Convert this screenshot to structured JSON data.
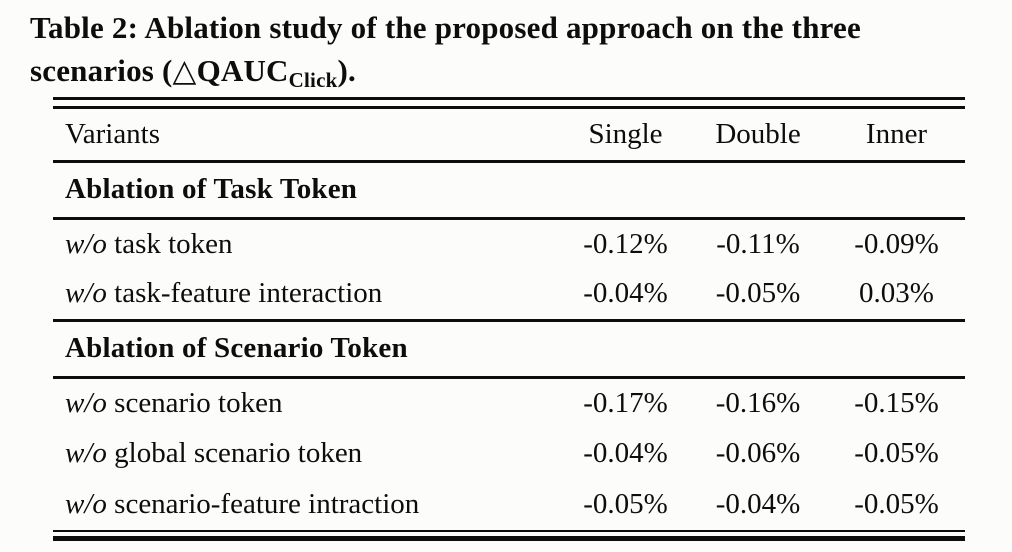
{
  "caption": {
    "line1": "Table 2: Ablation study of the proposed approach on the three",
    "line2_prefix": "scenarios (△QAUC",
    "metric_sub": "Click",
    "line2_suffix": ").",
    "text_color": "#0d0d0d",
    "background_color": "#fcfcfa"
  },
  "table": {
    "columns": [
      "Variants",
      "Single",
      "Double",
      "Inner"
    ],
    "sections": [
      {
        "title": "Ablation of Task Token",
        "rows": [
          {
            "prefix": "w/o",
            "label": "task token",
            "values": [
              "-0.12%",
              "-0.11%",
              "-0.09%"
            ]
          },
          {
            "prefix": "w/o",
            "label": "task-feature interaction",
            "values": [
              "-0.04%",
              "-0.05%",
              "0.03%"
            ]
          }
        ]
      },
      {
        "title": "Ablation of Scenario Token",
        "rows": [
          {
            "prefix": "w/o",
            "label": "scenario token",
            "values": [
              "-0.17%",
              "-0.16%",
              "-0.15%"
            ]
          },
          {
            "prefix": "w/o",
            "label": "global scenario token",
            "values": [
              "-0.04%",
              "-0.06%",
              "-0.05%"
            ]
          },
          {
            "prefix": "w/o",
            "label": "scenario-feature intraction",
            "values": [
              "-0.05%",
              "-0.04%",
              "-0.05%"
            ]
          }
        ]
      }
    ]
  }
}
